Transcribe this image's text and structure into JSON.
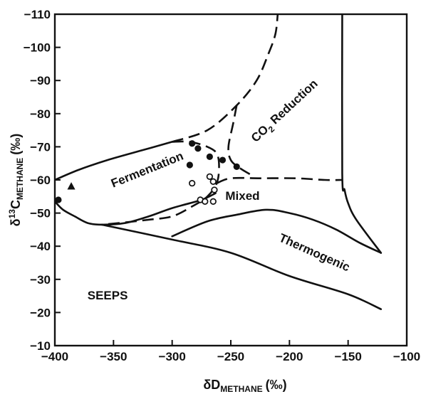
{
  "chart_data": {
    "type": "scatter",
    "title": "",
    "xlabel": {
      "main": "δD",
      "sub": "METHANE",
      "unit": "(‰)"
    },
    "ylabel": {
      "main": "δ",
      "sup": "13",
      "rest": "C",
      "sub": "METHANE",
      "unit": "(‰)"
    },
    "xlim": [
      -400,
      -100
    ],
    "ylim": [
      -10,
      -110
    ],
    "y_inverted": true,
    "xticks": [
      -400,
      -350,
      -300,
      -250,
      -200,
      -150,
      -100
    ],
    "yticks": [
      -10,
      -20,
      -30,
      -40,
      -50,
      -60,
      -70,
      -80,
      -90,
      -100,
      -110
    ],
    "grid": false,
    "legend": "none",
    "region_labels": [
      {
        "id": "fermentation",
        "text": "Fermentation",
        "x": -320,
        "y": -62,
        "rotation": -22
      },
      {
        "id": "co2-reduction",
        "main": "CO",
        "sub": "2",
        "rest": " Reduction",
        "x": -202,
        "y": -80,
        "rotation": -43
      },
      {
        "id": "mixed",
        "text": "Mixed",
        "x": -240,
        "y": -54,
        "rotation": 0
      },
      {
        "id": "thermogenic",
        "text": "Thermogenic",
        "x": -180,
        "y": -37,
        "rotation": 24
      },
      {
        "id": "seeps",
        "text": "SEEPS",
        "x": -355,
        "y": -24,
        "rotation": 0
      }
    ],
    "series": [
      {
        "marker": "filled-circle",
        "points": [
          [
            -397,
            -54
          ],
          [
            -283,
            -71
          ],
          [
            -278,
            -69.5
          ],
          [
            -285,
            -64.5
          ],
          [
            -268,
            -67
          ],
          [
            -257,
            -66
          ],
          [
            -245,
            -64
          ]
        ]
      },
      {
        "marker": "open-circle",
        "points": [
          [
            -283,
            -59
          ],
          [
            -268,
            -61
          ],
          [
            -265,
            -59.5
          ],
          [
            -264,
            -57
          ],
          [
            -276,
            -54
          ],
          [
            -272,
            -53.5
          ],
          [
            -265,
            -53.5
          ]
        ]
      },
      {
        "marker": "filled-triangle",
        "points": [
          [
            -386,
            -58
          ]
        ]
      }
    ],
    "boundaries": [
      {
        "id": "fermentation-solid-upper",
        "style": "solid",
        "points": [
          [
            -400,
            -60
          ],
          [
            -380,
            -63
          ],
          [
            -355,
            -66
          ],
          [
            -325,
            -69
          ],
          [
            -300,
            -71.5
          ]
        ]
      },
      {
        "id": "fermentation-solid-lower",
        "style": "solid",
        "points": [
          [
            -400,
            -53.5
          ],
          [
            -393,
            -51
          ],
          [
            -383,
            -49
          ],
          [
            -372,
            -47
          ],
          [
            -360,
            -46.5
          ],
          [
            -340,
            -47
          ],
          [
            -320,
            -49
          ],
          [
            -300,
            -51.5
          ],
          [
            -275,
            -54
          ],
          [
            -263,
            -56
          ]
        ]
      },
      {
        "id": "seeps-boundary",
        "style": "solid",
        "points": [
          [
            -360,
            -46.5
          ],
          [
            -300,
            -42
          ],
          [
            -250,
            -38
          ],
          [
            -200,
            -31
          ],
          [
            -150,
            -25.5
          ],
          [
            -122,
            -21
          ]
        ]
      },
      {
        "id": "thermogenic-upper",
        "style": "solid",
        "points": [
          [
            -155,
            -110
          ],
          [
            -155,
            -62
          ],
          [
            -153,
            -57
          ],
          [
            -150,
            -53
          ],
          [
            -143,
            -48
          ],
          [
            -122,
            -38
          ]
        ]
      },
      {
        "id": "thermogenic-lower",
        "style": "solid",
        "points": [
          [
            -122,
            -38
          ],
          [
            -140,
            -41
          ],
          [
            -160,
            -45
          ],
          [
            -180,
            -48
          ],
          [
            -200,
            -50
          ],
          [
            -220,
            -51
          ],
          [
            -245,
            -49.5
          ],
          [
            -270,
            -47.5
          ],
          [
            -300,
            -43
          ]
        ]
      },
      {
        "id": "fermentation-dashed",
        "style": "dashed",
        "points": [
          [
            -300,
            -71.5
          ],
          [
            -285,
            -71.5
          ],
          [
            -270,
            -70
          ],
          [
            -262,
            -68
          ],
          [
            -260,
            -64
          ],
          [
            -262,
            -59
          ],
          [
            -270,
            -55
          ],
          [
            -283,
            -52
          ],
          [
            -300,
            -49
          ],
          [
            -320,
            -48
          ],
          [
            -345,
            -47
          ],
          [
            -360,
            -46.5
          ]
        ]
      },
      {
        "id": "co2-reduction-upper",
        "style": "dashed",
        "points": [
          [
            -300,
            -71.5
          ],
          [
            -270,
            -75
          ],
          [
            -245,
            -82.5
          ],
          [
            -228,
            -90
          ],
          [
            -218,
            -98
          ],
          [
            -212,
            -104
          ],
          [
            -210,
            -110
          ]
        ]
      },
      {
        "id": "co2-reduction-inner",
        "style": "dashed",
        "points": [
          [
            -245,
            -82.5
          ],
          [
            -248,
            -77
          ],
          [
            -252,
            -70
          ],
          [
            -250,
            -66
          ],
          [
            -242,
            -63.5
          ],
          [
            -230,
            -61
          ]
        ]
      },
      {
        "id": "mixed-upper",
        "style": "dashed",
        "points": [
          [
            -262,
            -59
          ],
          [
            -250,
            -60.5
          ],
          [
            -225,
            -60.5
          ],
          [
            -195,
            -60.5
          ],
          [
            -170,
            -60
          ],
          [
            -155,
            -60
          ]
        ]
      }
    ]
  }
}
